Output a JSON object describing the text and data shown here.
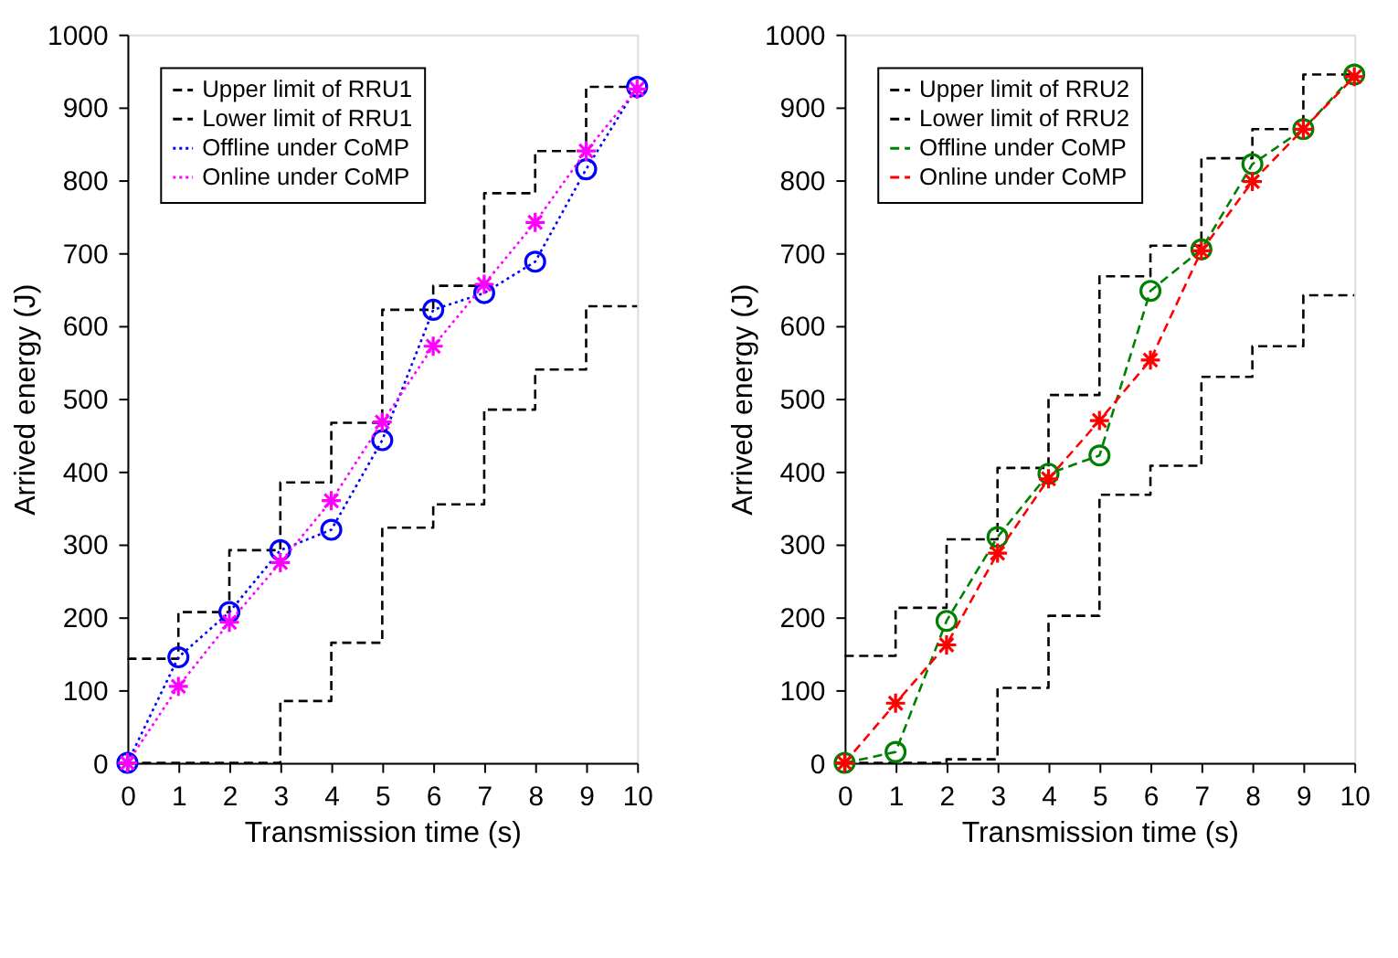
{
  "chart_data": [
    {
      "type": "line",
      "xlabel": "Transmission time (s)",
      "ylabel": "Arrived energy (J)",
      "x": [
        0,
        1,
        2,
        3,
        4,
        5,
        6,
        7,
        8,
        9,
        10
      ],
      "xlim": [
        0,
        10
      ],
      "xticks": [
        0,
        1,
        2,
        3,
        4,
        5,
        6,
        7,
        8,
        9,
        10
      ],
      "ylim": [
        0,
        1000
      ],
      "yticks": [
        0,
        100,
        200,
        300,
        400,
        500,
        600,
        700,
        800,
        900,
        {
          "value": 1000,
          "label": "1000"
        }
      ],
      "grid": false,
      "legend": "top left",
      "series": [
        {
          "name": "Upper limit of RRU1",
          "type": "step",
          "color": "#000000",
          "line_style": "dashed",
          "marker": "none",
          "values": [
            143,
            207,
            292,
            385,
            467,
            622,
            655,
            782,
            840,
            928,
            928
          ]
        },
        {
          "name": "Lower limit of RRU1",
          "type": "step",
          "color": "#000000",
          "line_style": "dashed",
          "marker": "none",
          "values": [
            0,
            0,
            0,
            85,
            165,
            323,
            355,
            485,
            540,
            627,
            627
          ]
        },
        {
          "name": "Offline under CoMP",
          "color": "#0000ff",
          "line_style": "dotted",
          "marker": "circle",
          "values": [
            0,
            145,
            207,
            292,
            320,
            443,
            622,
            645,
            688,
            815,
            928
          ]
        },
        {
          "name": "Online under CoMP",
          "color": "#ff00ff",
          "line_style": "dotted",
          "marker": "cross",
          "values": [
            0,
            105,
            193,
            275,
            360,
            468,
            572,
            657,
            742,
            840,
            925
          ]
        }
      ]
    },
    {
      "type": "line",
      "xlabel": "Transmission time (s)",
      "ylabel": "Arrived energy (J)",
      "x": [
        0,
        1,
        2,
        3,
        4,
        5,
        6,
        7,
        8,
        9,
        10
      ],
      "xlim": [
        0,
        10
      ],
      "xticks": [
        0,
        1,
        2,
        3,
        4,
        5,
        6,
        7,
        8,
        9,
        10
      ],
      "ylim": [
        0,
        1000
      ],
      "yticks": [
        0,
        100,
        200,
        300,
        400,
        500,
        600,
        700,
        800,
        900,
        {
          "value": 1000,
          "label": "1000"
        }
      ],
      "grid": false,
      "legend": "top left",
      "series": [
        {
          "name": "Upper limit of RRU2",
          "type": "step",
          "color": "#000000",
          "line_style": "dashed",
          "marker": "none",
          "values": [
            147,
            213,
            307,
            405,
            505,
            668,
            710,
            830,
            870,
            945,
            945
          ]
        },
        {
          "name": "Lower limit of RRU2",
          "type": "step",
          "color": "#000000",
          "line_style": "dashed",
          "marker": "none",
          "values": [
            0,
            0,
            5,
            103,
            202,
            368,
            408,
            530,
            572,
            642,
            642
          ]
        },
        {
          "name": "Offline under CoMP",
          "color": "#008000",
          "line_style": "dashed",
          "marker": "circle",
          "values": [
            0,
            15,
            195,
            310,
            397,
            422,
            648,
            705,
            822,
            870,
            945
          ]
        },
        {
          "name": "Online under CoMP",
          "color": "#ff0000",
          "line_style": "dashed",
          "marker": "cross",
          "values": [
            0,
            82,
            162,
            288,
            390,
            470,
            553,
            703,
            798,
            870,
            942
          ]
        }
      ]
    }
  ]
}
